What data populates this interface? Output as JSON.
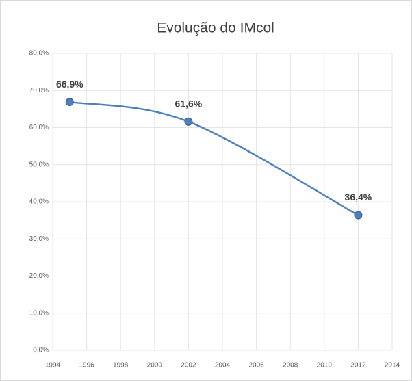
{
  "chart_data": {
    "type": "line",
    "title": "Evolução do IMcol",
    "x": [
      1995,
      2002,
      2012
    ],
    "series": [
      {
        "name": "IMcol",
        "color": "#4f7fbd",
        "values": [
          66.9,
          61.6,
          36.4
        ],
        "value_labels": [
          "66,9%",
          "61,6%",
          "36,4%"
        ]
      }
    ],
    "xlim": [
      1994,
      2014
    ],
    "xticks": [
      1994,
      1996,
      1998,
      2000,
      2002,
      2004,
      2006,
      2008,
      2010,
      2012,
      2014
    ],
    "ylim": [
      0,
      80
    ],
    "yticks": [
      {
        "value": 0,
        "label": "0,0%"
      },
      {
        "value": 10,
        "label": "10,0%"
      },
      {
        "value": 20,
        "label": "20,0%"
      },
      {
        "value": 30,
        "label": "30,0%"
      },
      {
        "value": 40,
        "label": "40,0%"
      },
      {
        "value": 50,
        "label": "50,0%"
      },
      {
        "value": 60,
        "label": "60,0%"
      },
      {
        "value": 70,
        "label": "70,0%"
      },
      {
        "value": 80,
        "label": "80,0%"
      }
    ],
    "grid": true
  }
}
